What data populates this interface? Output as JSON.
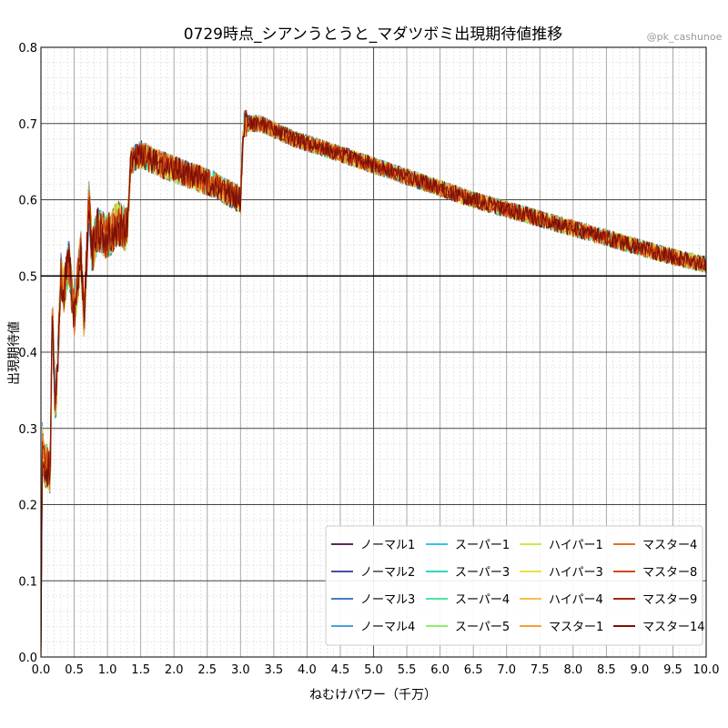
{
  "chart_data": {
    "type": "line",
    "title": "0729時点_シアンうとうと_マダツボミ出現期待値推移",
    "credit": "@pk_cashunoe",
    "xlabel": "ねむけパワー（千万）",
    "ylabel": "出現期待値",
    "xlim": [
      0.0,
      10.0
    ],
    "ylim": [
      0.0,
      0.8
    ],
    "xticks": [
      "0.0",
      "0.5",
      "1.0",
      "1.5",
      "2.0",
      "2.5",
      "3.0",
      "3.5",
      "4.0",
      "4.5",
      "5.0",
      "5.5",
      "6.0",
      "6.5",
      "7.0",
      "7.5",
      "8.0",
      "8.5",
      "9.0",
      "9.5",
      "10.0"
    ],
    "yticks": [
      "0.0",
      "0.1",
      "0.2",
      "0.3",
      "0.4",
      "0.5",
      "0.6",
      "0.7",
      "0.8"
    ],
    "grid": true,
    "reference_line": 0.5,
    "legend_position": "lower-right",
    "series": [
      {
        "name": "ノーマル1",
        "color": "#5a2a54"
      },
      {
        "name": "ノーマル2",
        "color": "#4a50a0"
      },
      {
        "name": "ノーマル3",
        "color": "#4a78c8"
      },
      {
        "name": "ノーマル4",
        "color": "#4aa0d8"
      },
      {
        "name": "スーパー1",
        "color": "#35c4e0"
      },
      {
        "name": "スーパー3",
        "color": "#2ad8c0"
      },
      {
        "name": "スーパー4",
        "color": "#4ae898"
      },
      {
        "name": "スーパー5",
        "color": "#8af070"
      },
      {
        "name": "ハイパー1",
        "color": "#c0f048"
      },
      {
        "name": "ハイパー3",
        "color": "#e8e048"
      },
      {
        "name": "ハイパー4",
        "color": "#f5c050"
      },
      {
        "name": "マスター1",
        "color": "#f5a030"
      },
      {
        "name": "マスター4",
        "color": "#e87020"
      },
      {
        "name": "マスター8",
        "color": "#d04810"
      },
      {
        "name": "マスター9",
        "color": "#a82808"
      },
      {
        "name": "マスター14",
        "color": "#7a1008"
      }
    ],
    "trend": {
      "x": [
        0.0,
        0.02,
        0.05,
        0.1,
        0.14,
        0.17,
        0.22,
        0.3,
        0.35,
        0.42,
        0.5,
        0.6,
        0.65,
        0.72,
        0.77,
        0.85,
        1.0,
        1.15,
        1.3,
        1.35,
        1.5,
        1.7,
        2.0,
        2.3,
        2.6,
        3.0,
        3.05,
        3.3,
        3.8,
        4.5,
        5.5,
        6.5,
        7.5,
        8.5,
        9.5,
        10.0
      ],
      "y": [
        0.0,
        0.28,
        0.25,
        0.25,
        0.24,
        0.45,
        0.32,
        0.5,
        0.48,
        0.52,
        0.45,
        0.53,
        0.44,
        0.6,
        0.53,
        0.56,
        0.55,
        0.57,
        0.56,
        0.65,
        0.66,
        0.65,
        0.64,
        0.63,
        0.62,
        0.6,
        0.7,
        0.7,
        0.68,
        0.66,
        0.63,
        0.6,
        0.575,
        0.55,
        0.525,
        0.515
      ]
    }
  }
}
